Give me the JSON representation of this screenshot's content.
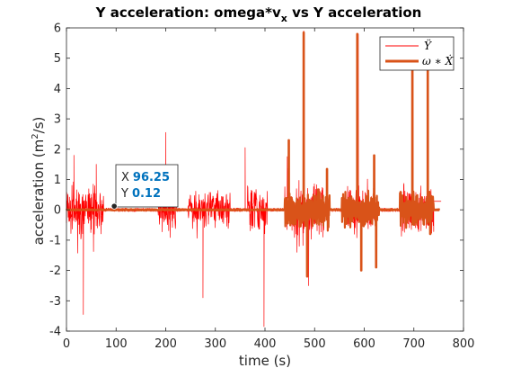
{
  "chart_data": {
    "type": "line",
    "title": "Y acceleration: omega*v",
    "title_sub": "x",
    "title_suffix": " vs Y acceleration",
    "xlabel": "time (s)",
    "ylabel_pre": "acceleration (m",
    "ylabel_sup": "2",
    "ylabel_post": "/s)",
    "xlim": [
      0,
      800
    ],
    "ylim": [
      -4,
      6
    ],
    "xticks": [
      "0",
      "100",
      "200",
      "300",
      "400",
      "500",
      "600",
      "700",
      "800"
    ],
    "yticks": [
      "-4",
      "-3",
      "-2",
      "-1",
      "0",
      "1",
      "2",
      "3",
      "4",
      "5",
      "6"
    ],
    "grid": false,
    "legend_position": "top-right",
    "series": [
      {
        "name": "Ÿ",
        "color": "#ff0000",
        "line_width": "thin",
        "segments": [
          {
            "start": 0,
            "end": 75,
            "amplitude": 1.0,
            "seed": 3
          },
          {
            "start": 185,
            "end": 222,
            "amplitude": 0.8,
            "seed": 7
          },
          {
            "start": 245,
            "end": 330,
            "amplitude": 0.7,
            "seed": 11
          },
          {
            "start": 365,
            "end": 405,
            "amplitude": 0.9,
            "seed": 13
          },
          {
            "start": 440,
            "end": 520,
            "amplitude": 1.1,
            "seed": 17
          },
          {
            "start": 560,
            "end": 620,
            "amplitude": 1.0,
            "seed": 19
          },
          {
            "start": 675,
            "end": 740,
            "amplitude": 1.0,
            "seed": 23
          }
        ],
        "peaks": [
          {
            "x": 15,
            "y": 1.8
          },
          {
            "x": 34,
            "y": -3.45
          },
          {
            "x": 60,
            "y": 1.5
          },
          {
            "x": 200,
            "y": 2.55
          },
          {
            "x": 275,
            "y": -2.9
          },
          {
            "x": 360,
            "y": 2.05
          },
          {
            "x": 398,
            "y": -3.85
          },
          {
            "x": 478,
            "y": 5.9
          },
          {
            "x": 488,
            "y": -2.5
          },
          {
            "x": 588,
            "y": 5.8
          },
          {
            "x": 698,
            "y": 4.95
          },
          {
            "x": 728,
            "y": 4.8
          },
          {
            "x": 733,
            "y": -0.8
          }
        ],
        "tail": {
          "start": 740,
          "end": 755,
          "y": 0.28
        }
      },
      {
        "name": "ω ∗ Ẋ",
        "color": "#d95319",
        "line_width": "thick",
        "peaks": [
          {
            "x": 448,
            "y": 2.3
          },
          {
            "x": 478,
            "y": 5.85
          },
          {
            "x": 485,
            "y": -2.2
          },
          {
            "x": 525,
            "y": 1.35
          },
          {
            "x": 586,
            "y": 5.8
          },
          {
            "x": 594,
            "y": -2.0
          },
          {
            "x": 620,
            "y": 1.8
          },
          {
            "x": 624,
            "y": -1.9
          },
          {
            "x": 697,
            "y": 4.95
          },
          {
            "x": 728,
            "y": 4.8
          },
          {
            "x": 733,
            "y": -0.8
          }
        ],
        "active": [
          {
            "start": 440,
            "end": 530
          },
          {
            "start": 555,
            "end": 630
          },
          {
            "start": 672,
            "end": 740
          }
        ],
        "end": 752
      }
    ],
    "datatip": {
      "x_label": "X",
      "x_value": "96.25",
      "y_label": "Y",
      "y_value": "0.12",
      "point": {
        "x": 96.25,
        "y": 0.12
      }
    }
  }
}
